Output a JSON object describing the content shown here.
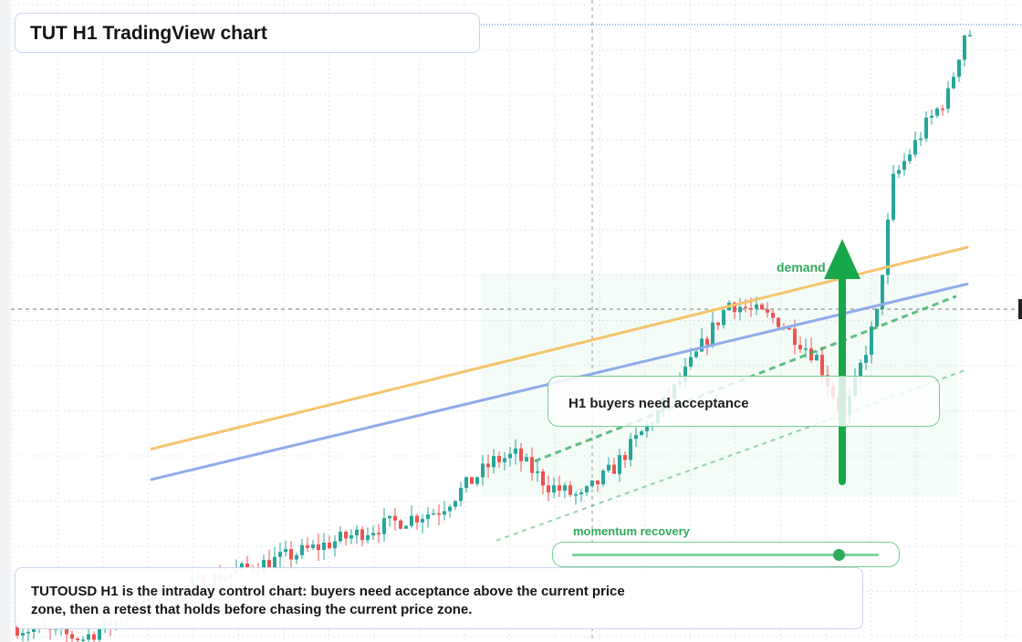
{
  "title": "TUT H1 TradingView chart",
  "annotations": {
    "buyers_zone": "H1 buyers need acceptance",
    "demand_label": "demand",
    "momentum_label": "momentum recovery",
    "momentum_level": 0.87
  },
  "note": "TUTOUSD H1 is the intraday control chart: buyers need acceptance above the current price zone, then a retest that holds before chasing the current price zone.",
  "colors": {
    "up": "#26a69a",
    "down": "#ef5350",
    "resistance": "#f5c46b",
    "trend": "#8fabeb",
    "accent_green": "#18a84a",
    "zone_green": "#2faa5a"
  },
  "chart_data": {
    "type": "candlestick",
    "title": "TUT H1 TradingView chart",
    "symbol": "TUTOUSD",
    "timeframe": "H1",
    "bar_count": 175,
    "y_range_relative": [
      0,
      1
    ],
    "anchors": [
      [
        0,
        0.02
      ],
      [
        13,
        0.0
      ],
      [
        27,
        0.07
      ],
      [
        56,
        0.15
      ],
      [
        66,
        0.18
      ],
      [
        78,
        0.21
      ],
      [
        88,
        0.29
      ],
      [
        92,
        0.3
      ],
      [
        98,
        0.25
      ],
      [
        104,
        0.23
      ],
      [
        110,
        0.28
      ],
      [
        118,
        0.37
      ],
      [
        122,
        0.42
      ],
      [
        131,
        0.55
      ],
      [
        140,
        0.52
      ],
      [
        147,
        0.46
      ],
      [
        152,
        0.36
      ],
      [
        158,
        0.53
      ],
      [
        161,
        0.75
      ],
      [
        167,
        0.84
      ],
      [
        171,
        0.89
      ],
      [
        174,
        0.99
      ]
    ],
    "overlays": {
      "resistance_line": {
        "from_bar": 25,
        "to_bar": 174,
        "y": [
          0.31,
          0.64
        ]
      },
      "trend_line": {
        "from_bar": 25,
        "to_bar": 174,
        "y": [
          0.26,
          0.58
        ]
      },
      "dashed_support_upper": {
        "from_bar": 95,
        "to_bar": 172,
        "y": [
          0.29,
          0.56
        ]
      },
      "dashed_support_lower": {
        "from_bar": 88,
        "to_bar": 174,
        "y": [
          0.16,
          0.44
        ]
      },
      "demand_arrow_bar": 151
    },
    "grid": true,
    "legend": "none"
  }
}
